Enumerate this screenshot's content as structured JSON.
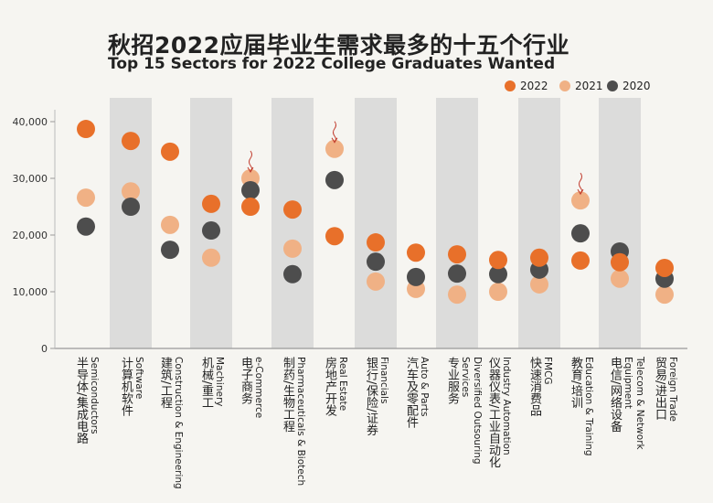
{
  "header": {
    "title": "秋招2022应届毕业生需求最多的十五个行业",
    "subtitle": "Top 15 Sectors for 2022 College Graduates Wanted"
  },
  "chart_data": {
    "type": "scatter",
    "title": "秋招2022应届毕业生需求最多的十五个行业",
    "subtitle": "Top 15 Sectors for 2022 College Graduates Wanted",
    "categories": [
      {
        "en": "Semiconductors",
        "zh": "半导体/集成电路"
      },
      {
        "en": "Software",
        "zh": "计算机软件"
      },
      {
        "en": "Construction & Engineering",
        "zh": "建筑/工程"
      },
      {
        "en": "Machinery",
        "zh": "机械/重工"
      },
      {
        "en": "e-Commerce",
        "zh": "电子商务"
      },
      {
        "en": "Pharmaceuticals & Biotech",
        "zh": "制药/生物工程"
      },
      {
        "en": "Real Estate",
        "zh": "房地产开发"
      },
      {
        "en": "Financials",
        "zh": "银行/保险/证券"
      },
      {
        "en": "Auto & Parts",
        "zh": "汽车及零配件"
      },
      {
        "en": "Diversified Outsouring Services",
        "zh": "专业服务"
      },
      {
        "en": "Industry Automation",
        "zh": "仪器仪表/工业自动化"
      },
      {
        "en": "FMCG",
        "zh": "快速消费品"
      },
      {
        "en": "Education & Training",
        "zh": "教育/培训"
      },
      {
        "en": "Telecom & Network Equipment",
        "zh": "电信/网络设备"
      },
      {
        "en": "Foreign Trade",
        "zh": "贸易/进出口"
      }
    ],
    "series": [
      {
        "name": "2022",
        "color": "#e8702a",
        "values": [
          38700,
          36600,
          34700,
          25500,
          25000,
          24500,
          19800,
          18700,
          16900,
          16600,
          15600,
          16000,
          15500,
          15200,
          14200
        ]
      },
      {
        "name": "2021",
        "color": "#f0b185",
        "values": [
          26600,
          27700,
          21800,
          16000,
          30000,
          17600,
          35200,
          11800,
          10500,
          9500,
          10000,
          11300,
          26100,
          12300,
          9500
        ]
      },
      {
        "name": "2020",
        "color": "#4d4d4d",
        "values": [
          21500,
          25000,
          17400,
          20800,
          27900,
          13100,
          29700,
          15300,
          12600,
          13200,
          13100,
          13900,
          20300,
          17100,
          12300
        ]
      }
    ],
    "ylim": [
      0,
      40000
    ],
    "yticks": [
      "0",
      "10,000",
      "20,000",
      "30,000",
      "40,000"
    ],
    "yticks_values": [
      0,
      10000,
      20000,
      30000,
      40000
    ],
    "legend_position": "top-right",
    "grid": false,
    "annotations": [
      "down-arrow on e-Commerce",
      "down-arrow on Real Estate",
      "down-arrow on Education & Training"
    ],
    "band_color": "#dcdcdb"
  }
}
